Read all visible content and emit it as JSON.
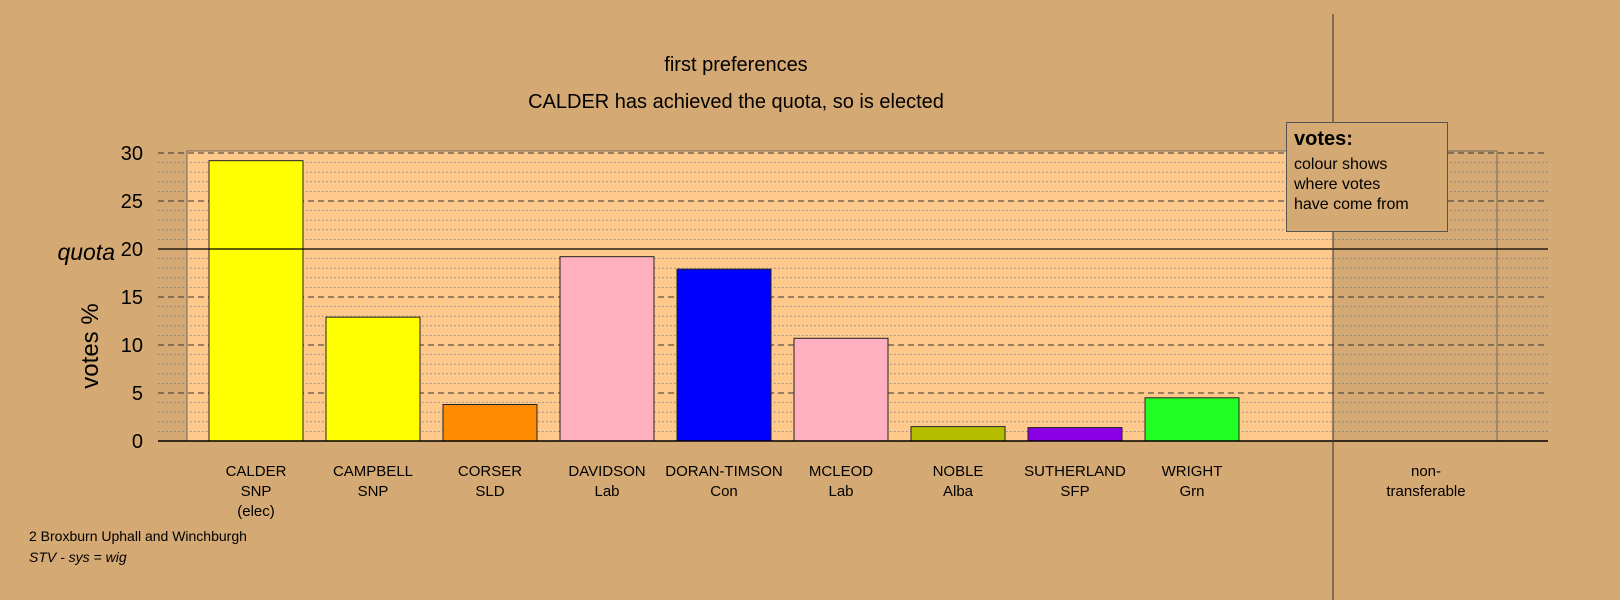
{
  "chart_data": {
    "type": "bar",
    "title": "first preferences",
    "subtitle": "CALDER has achieved the quota, so is elected",
    "ylabel": "votes %",
    "ylim": [
      0,
      30
    ],
    "yticks": [
      0,
      5,
      10,
      15,
      20,
      25,
      30
    ],
    "quota": {
      "label": "quota",
      "value": 20
    },
    "candidates": [
      {
        "name": "CALDER",
        "party": "SNP",
        "status": "(elec)",
        "value": 29.2,
        "color": "#ffff00"
      },
      {
        "name": "CAMPBELL",
        "party": "SNP",
        "status": "",
        "value": 12.9,
        "color": "#ffff00"
      },
      {
        "name": "CORSER",
        "party": "SLD",
        "status": "",
        "value": 3.8,
        "color": "#ff8c00"
      },
      {
        "name": "DAVIDSON",
        "party": "Lab",
        "status": "",
        "value": 19.2,
        "color": "#ffb0c0"
      },
      {
        "name": "DORAN-TIMSON",
        "party": "Con",
        "status": "",
        "value": 17.9,
        "color": "#0000ff"
      },
      {
        "name": "MCLEOD",
        "party": "Lab",
        "status": "",
        "value": 10.7,
        "color": "#ffb0c0"
      },
      {
        "name": "NOBLE",
        "party": "Alba",
        "status": "",
        "value": 1.5,
        "color": "#b5bd00"
      },
      {
        "name": "SUTHERLAND",
        "party": "SFP",
        "status": "",
        "value": 1.4,
        "color": "#8a00e6"
      },
      {
        "name": "WRIGHT",
        "party": "Grn",
        "status": "",
        "value": 4.5,
        "color": "#22ff22"
      }
    ],
    "nontransferable": {
      "line1": "non-",
      "line2": "transferable",
      "value": 0
    },
    "colors": {
      "background": "#d4a973",
      "plot_area": "#ffc98c",
      "nontransferable_area": "#d4a973"
    }
  },
  "legend": {
    "title": "votes:",
    "lines": [
      "colour shows",
      "where votes",
      "have come from"
    ]
  },
  "footer": {
    "constituency": "2 Broxburn Uphall and Winchburgh",
    "system": "STV - sys = wig"
  }
}
